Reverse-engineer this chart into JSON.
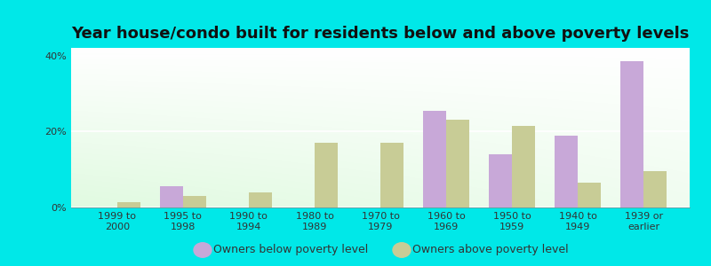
{
  "title": "Year house/condo built for residents below and above poverty levels",
  "categories": [
    "1999 to\n2000",
    "1995 to\n1998",
    "1990 to\n1994",
    "1980 to\n1989",
    "1970 to\n1979",
    "1960 to\n1969",
    "1950 to\n1959",
    "1940 to\n1949",
    "1939 or\nearlier"
  ],
  "below_poverty": [
    0.0,
    5.5,
    0.0,
    0.0,
    0.0,
    25.5,
    14.0,
    19.0,
    38.5
  ],
  "above_poverty": [
    1.5,
    3.0,
    4.0,
    17.0,
    17.0,
    23.0,
    21.5,
    6.5,
    9.5
  ],
  "below_color": "#c8a8d8",
  "above_color": "#c8cc96",
  "background_outer": "#00e8e8",
  "ylim": [
    0,
    42
  ],
  "yticks": [
    0,
    20,
    40
  ],
  "ytick_labels": [
    "0%",
    "20%",
    "40%"
  ],
  "legend_below": "Owners below poverty level",
  "legend_above": "Owners above poverty level",
  "bar_width": 0.35,
  "title_fontsize": 13,
  "tick_fontsize": 8,
  "legend_fontsize": 9
}
